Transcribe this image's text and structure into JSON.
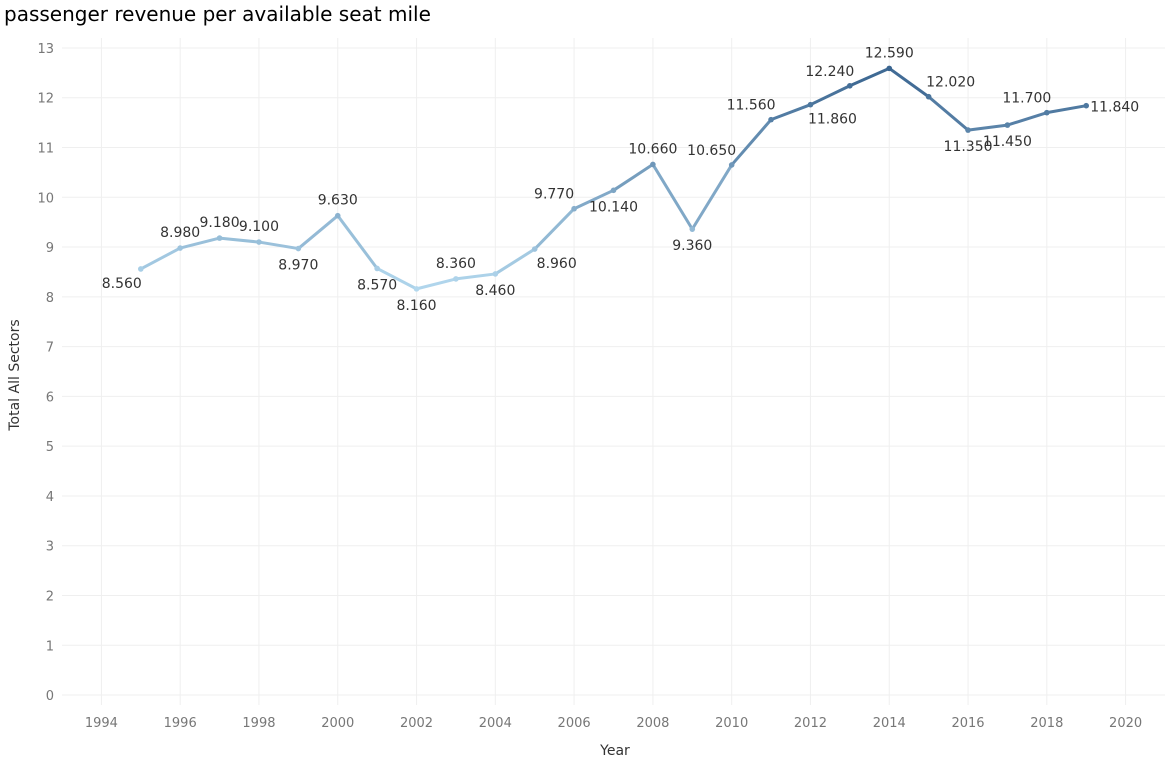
{
  "chart_data": {
    "type": "line",
    "title": "passenger revenue per available seat mile",
    "xlabel": "Year",
    "ylabel": "Total All Sectors",
    "xlim": [
      1993,
      2021
    ],
    "ylim": [
      -0.2,
      13.2
    ],
    "x_ticks": [
      1994,
      1996,
      1998,
      2000,
      2002,
      2004,
      2006,
      2008,
      2010,
      2012,
      2014,
      2016,
      2018,
      2020
    ],
    "y_ticks": [
      0,
      1,
      2,
      3,
      4,
      5,
      6,
      7,
      8,
      9,
      10,
      11,
      12,
      13
    ],
    "grid": true,
    "color_scale": {
      "low": "#b3d8ee",
      "high": "#3a6590",
      "domain": [
        8.16,
        12.59
      ]
    },
    "series": [
      {
        "x": [
          1995,
          1996,
          1997,
          1998,
          1999,
          2000,
          2001,
          2002,
          2003,
          2004,
          2005,
          2006,
          2007,
          2008,
          2009,
          2010,
          2011,
          2012,
          2013,
          2014,
          2015,
          2016,
          2017,
          2018,
          2019
        ],
        "y": [
          8.56,
          8.98,
          9.18,
          9.1,
          8.97,
          9.63,
          8.57,
          8.16,
          8.36,
          8.46,
          8.96,
          9.77,
          10.14,
          10.66,
          9.36,
          10.65,
          11.56,
          11.86,
          12.24,
          12.59,
          12.02,
          11.35,
          11.45,
          11.7,
          11.84
        ],
        "labels": [
          "8.560",
          "8.980",
          "9.180",
          "9.100",
          "8.970",
          "9.630",
          "8.570",
          "8.160",
          "8.360",
          "8.460",
          "8.960",
          "9.770",
          "10.140",
          "10.660",
          "9.360",
          "10.650",
          "11.560",
          "11.860",
          "12.240",
          "12.590",
          "12.020",
          "11.350",
          "11.450",
          "11.700",
          "11.840"
        ],
        "label_positions": [
          "below-left",
          "above",
          "above",
          "above",
          "below",
          "above",
          "below",
          "below",
          "above",
          "below",
          "below-right",
          "above-left",
          "below",
          "above",
          "below",
          "above-left",
          "above-left",
          "below-right",
          "above-left",
          "above",
          "above-right",
          "below",
          "below",
          "above-left",
          "right"
        ]
      }
    ]
  }
}
